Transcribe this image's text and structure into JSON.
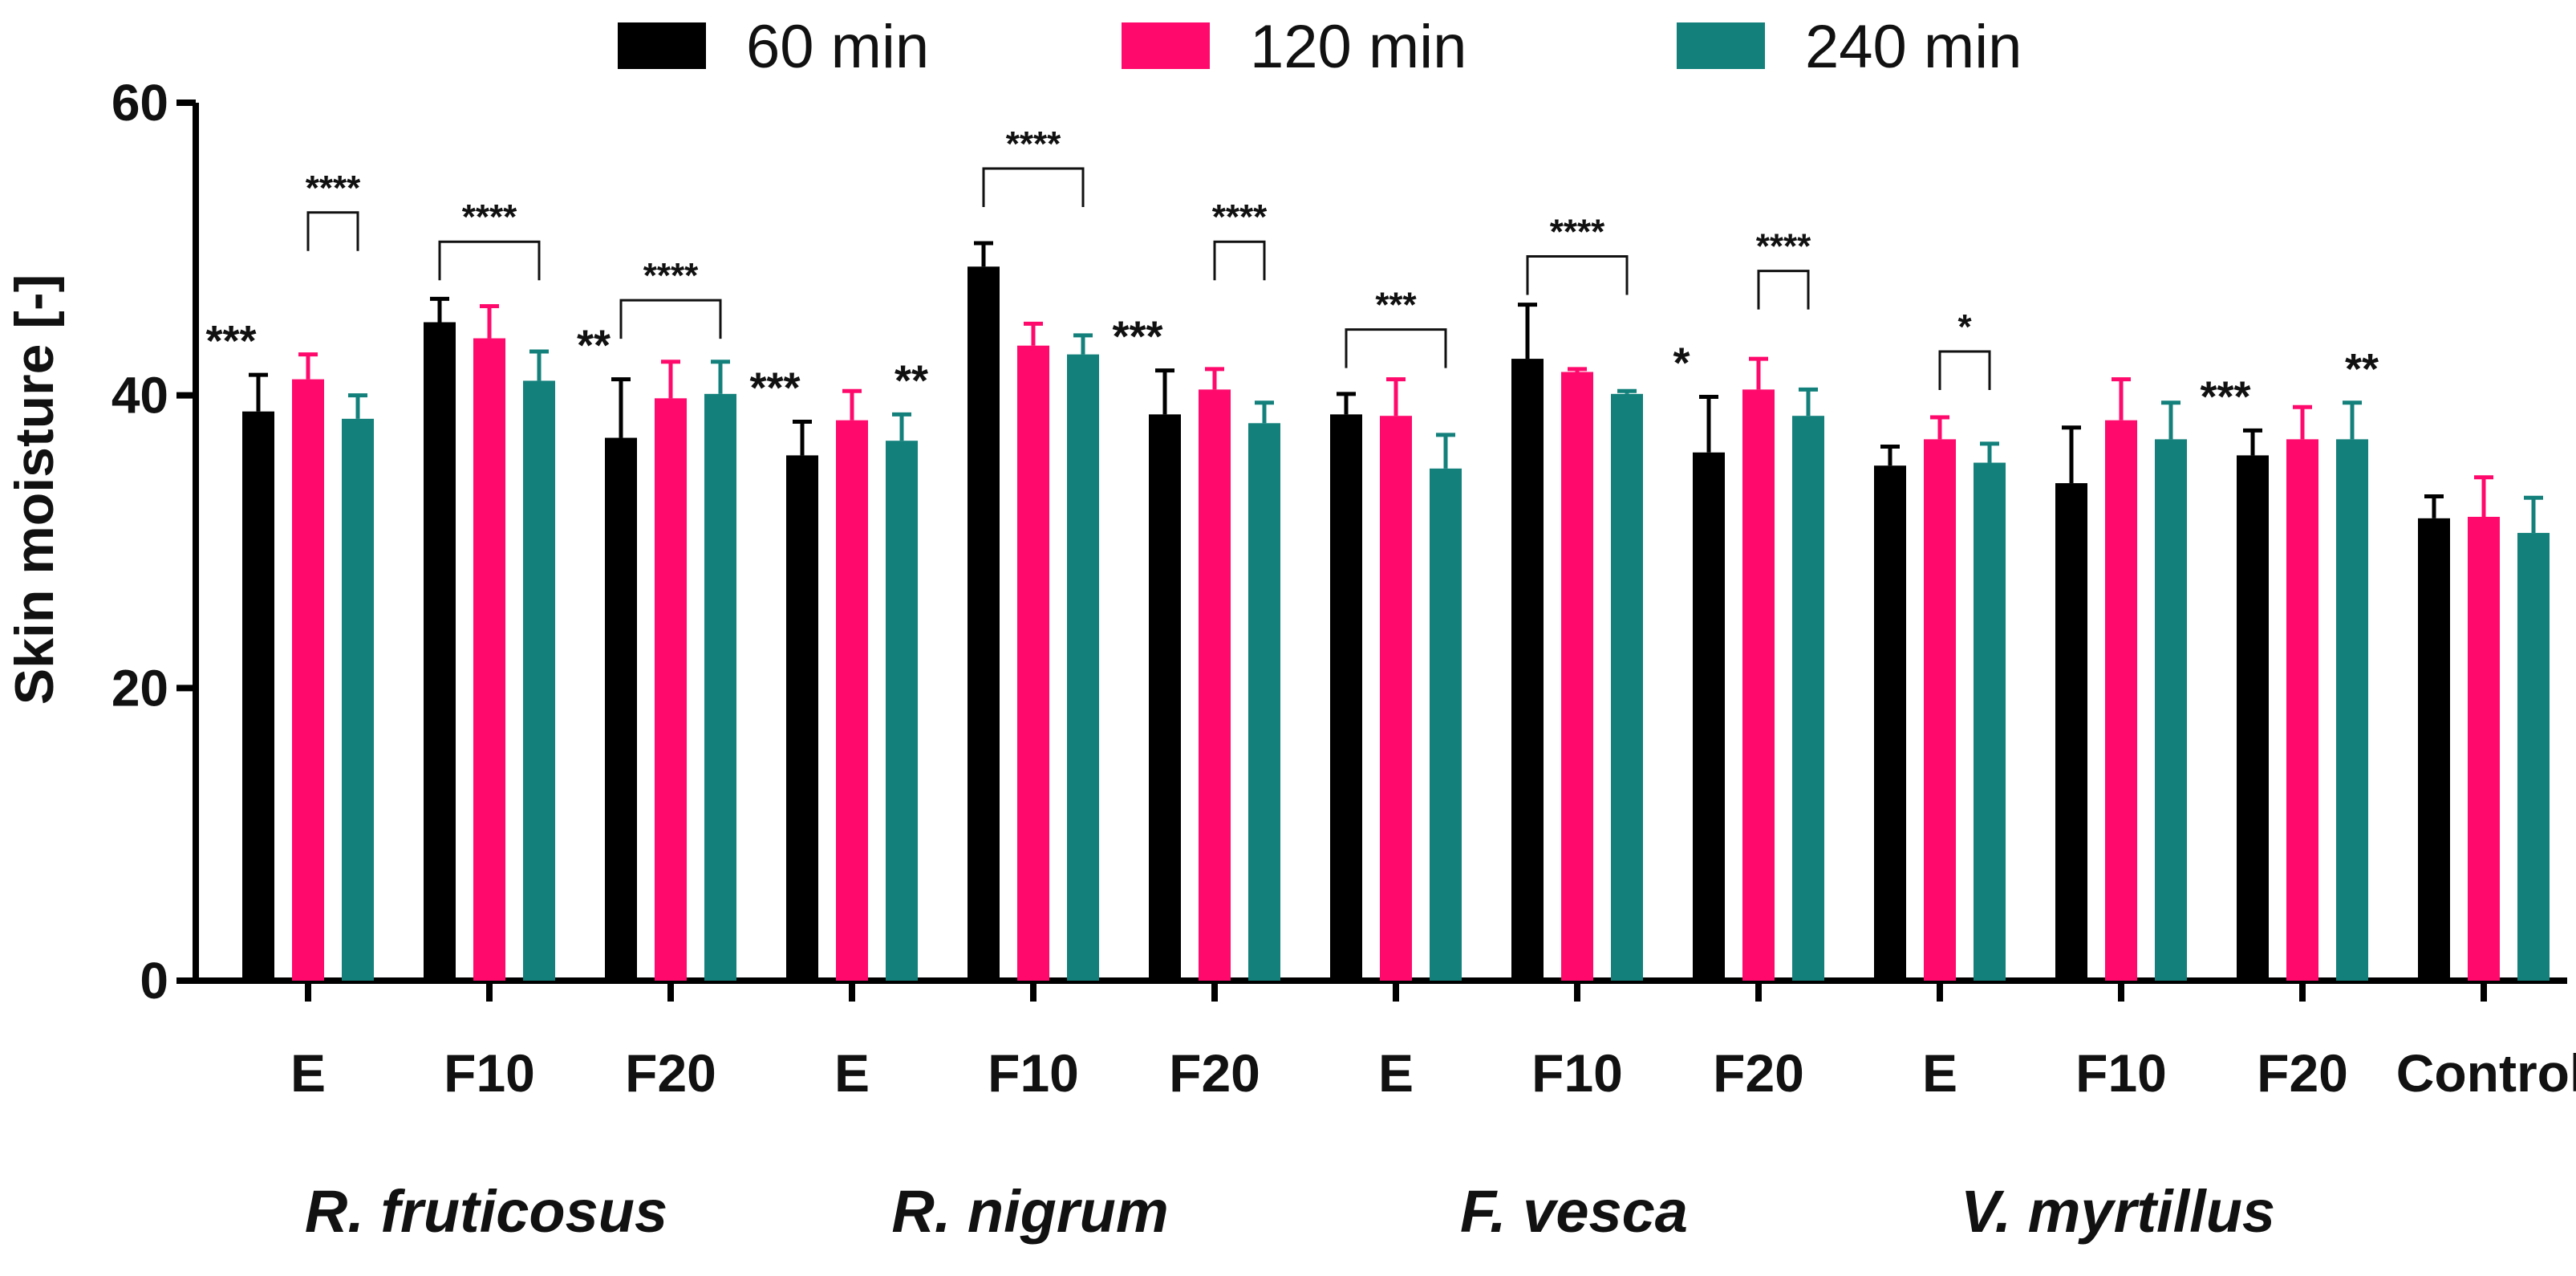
{
  "chart_data": {
    "type": "bar",
    "ylabel": "Skin moisture [-]",
    "ylim": [
      0,
      60
    ],
    "yticks": [
      0,
      20,
      40,
      60
    ],
    "legend_position": "top",
    "categories": [
      "E",
      "F10",
      "F20",
      "E",
      "F10",
      "F20",
      "E",
      "F10",
      "F20",
      "E",
      "F10",
      "F20",
      "Control"
    ],
    "groups": [
      {
        "label": "R. fruticosus",
        "from": 0,
        "to": 2
      },
      {
        "label": "R. nigrum",
        "from": 3,
        "to": 5
      },
      {
        "label": "F. vesca",
        "from": 6,
        "to": 8
      },
      {
        "label": "V. myrtillus",
        "from": 9,
        "to": 11
      }
    ],
    "series": [
      {
        "name": "60 min",
        "color": "#000000",
        "values": [
          38.9,
          45.0,
          37.1,
          35.9,
          48.8,
          38.7,
          38.7,
          42.5,
          36.1,
          35.2,
          34.0,
          35.9,
          31.6
        ],
        "errors": [
          2.5,
          1.6,
          4.0,
          2.3,
          1.6,
          3.0,
          1.4,
          3.7,
          3.8,
          1.3,
          3.8,
          1.7,
          1.5
        ]
      },
      {
        "name": "120 min",
        "color": "#ff0a6c",
        "values": [
          41.1,
          43.9,
          39.8,
          38.3,
          43.4,
          40.4,
          38.6,
          41.6,
          40.4,
          37.0,
          38.3,
          37.0,
          31.7
        ],
        "errors": [
          1.7,
          2.2,
          2.5,
          2.0,
          1.5,
          1.4,
          2.5,
          0.2,
          2.1,
          1.5,
          2.8,
          2.2,
          2.7
        ]
      },
      {
        "name": "240 min",
        "color": "#13807b",
        "values": [
          38.4,
          41.0,
          40.1,
          36.9,
          42.8,
          38.1,
          35.0,
          40.1,
          38.6,
          35.4,
          37.0,
          37.0,
          30.6
        ],
        "errors": [
          1.6,
          2.0,
          2.2,
          1.8,
          1.3,
          1.4,
          2.3,
          0.2,
          1.8,
          1.3,
          2.5,
          2.5,
          2.4
        ]
      }
    ],
    "stars": [
      {
        "text": "***",
        "cat": 0,
        "series": 0
      },
      {
        "text": "**",
        "cat": 2,
        "series": 0
      },
      {
        "text": "***",
        "cat": 3,
        "series": 0
      },
      {
        "text": "**",
        "cat": 3,
        "series": 2
      },
      {
        "text": "***",
        "cat": 5,
        "series": 0
      },
      {
        "text": "*",
        "cat": 8,
        "series": 0
      },
      {
        "text": "***",
        "cat": 11,
        "series": 0
      },
      {
        "text": "**",
        "cat": 11,
        "series": 2
      }
    ],
    "brackets": [
      {
        "text": "****",
        "cat": 0,
        "from_series": 1,
        "to_series": 2,
        "y": 52.5
      },
      {
        "text": "****",
        "cat": 1,
        "from_series": 0,
        "to_series": 2,
        "y": 50.5
      },
      {
        "text": "****",
        "cat": 2,
        "from_series": 0,
        "to_series": 2,
        "y": 46.5
      },
      {
        "text": "****",
        "cat": 4,
        "from_series": 0,
        "to_series": 2,
        "y": 55.5
      },
      {
        "text": "****",
        "cat": 5,
        "from_series": 1,
        "to_series": 2,
        "y": 50.5
      },
      {
        "text": "***",
        "cat": 6,
        "from_series": 0,
        "to_series": 2,
        "y": 44.5
      },
      {
        "text": "****",
        "cat": 7,
        "from_series": 0,
        "to_series": 2,
        "y": 49.5
      },
      {
        "text": "****",
        "cat": 8,
        "from_series": 1,
        "to_series": 2,
        "y": 48.5
      },
      {
        "text": "*",
        "cat": 9,
        "from_series": 1,
        "to_series": 2,
        "y": 43.0
      }
    ]
  }
}
